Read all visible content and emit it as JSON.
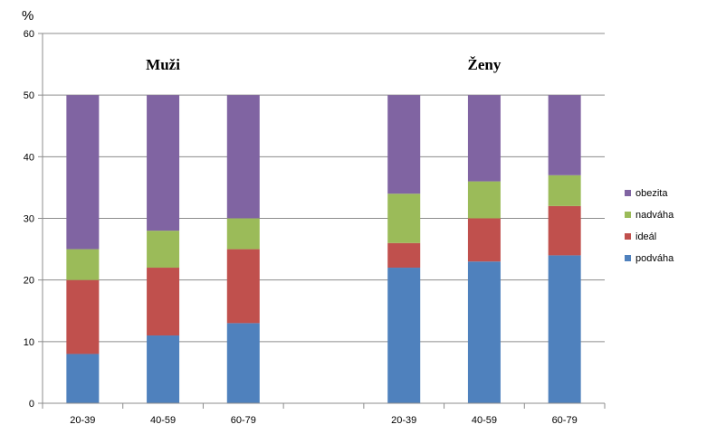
{
  "chart_data": {
    "type": "bar",
    "stacked": true,
    "y_unit_label": "%",
    "ylim": [
      0,
      60
    ],
    "y_ticks": [
      0,
      10,
      20,
      30,
      40,
      50,
      60
    ],
    "grid": true,
    "legend_position": "right",
    "categories": [
      "20-39",
      "40-59",
      "60-79",
      "",
      "20-39",
      "40-59",
      "60-79"
    ],
    "groups": [
      {
        "label": "Muži",
        "category_indices": [
          0,
          1,
          2
        ]
      },
      {
        "label": "Ženy",
        "category_indices": [
          4,
          5,
          6
        ]
      }
    ],
    "series": [
      {
        "name": "podváha",
        "color": "#4f81bd",
        "values": [
          8,
          11,
          13,
          null,
          22,
          23,
          24
        ]
      },
      {
        "name": "ideál",
        "color": "#c0504d",
        "values": [
          12,
          11,
          12,
          null,
          4,
          7,
          8
        ]
      },
      {
        "name": "nadváha",
        "color": "#9bbb59",
        "values": [
          5,
          6,
          5,
          null,
          8,
          6,
          5
        ]
      },
      {
        "name": "obezita",
        "color": "#8064a2",
        "values": [
          25,
          22,
          20,
          null,
          16,
          14,
          13
        ]
      }
    ]
  }
}
